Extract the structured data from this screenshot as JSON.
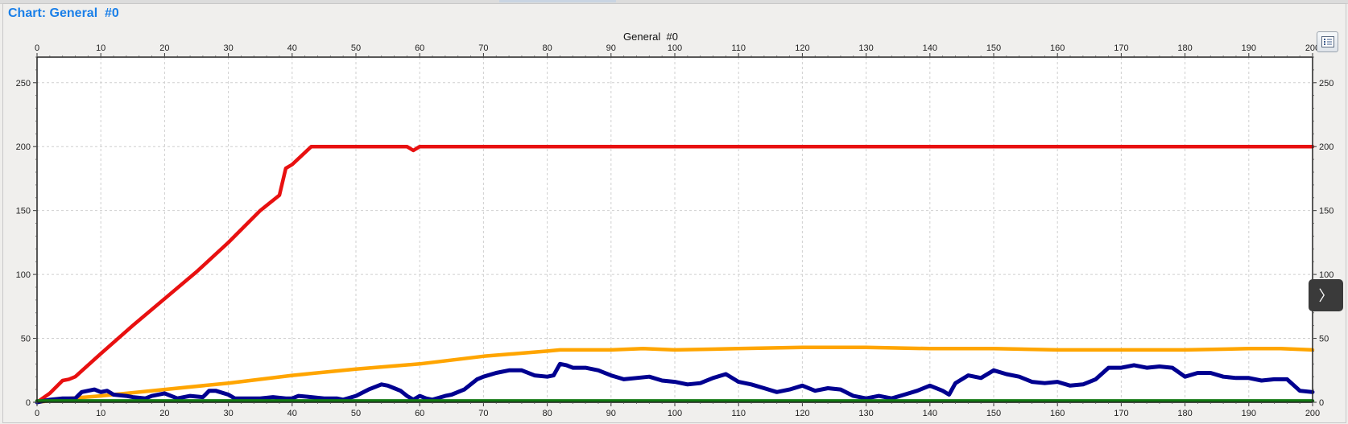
{
  "window": {
    "title": "Chart: General  #0"
  },
  "controls": {
    "legend_icon": "list-icon",
    "side_toggle_icon": "chevron-right-icon",
    "side_toggle_glyph": "〉"
  },
  "chart_data": {
    "type": "line",
    "title": "General  #0",
    "xlabel": "",
    "ylabel": "",
    "xlim": [
      0,
      200
    ],
    "ylim": [
      0,
      270
    ],
    "x_ticks": [
      0,
      10,
      20,
      30,
      40,
      50,
      60,
      70,
      80,
      90,
      100,
      110,
      120,
      130,
      140,
      150,
      160,
      170,
      180,
      190,
      200
    ],
    "y_ticks": [
      0,
      50,
      100,
      150,
      200,
      250
    ],
    "grid": true,
    "legend": "hidden",
    "series": [
      {
        "color": "#e81010",
        "points": [
          [
            0,
            0
          ],
          [
            2,
            7
          ],
          [
            4,
            17
          ],
          [
            5,
            18
          ],
          [
            6,
            20
          ],
          [
            10,
            38
          ],
          [
            15,
            60
          ],
          [
            20,
            81
          ],
          [
            25,
            102
          ],
          [
            30,
            125
          ],
          [
            35,
            150
          ],
          [
            38,
            162
          ],
          [
            39,
            183
          ],
          [
            40,
            186
          ],
          [
            43,
            200
          ],
          [
            58,
            200
          ],
          [
            59,
            197
          ],
          [
            60,
            200
          ],
          [
            200,
            200
          ]
        ]
      },
      {
        "color": "#ffa500",
        "points": [
          [
            0,
            0
          ],
          [
            5,
            3
          ],
          [
            10,
            5
          ],
          [
            20,
            10
          ],
          [
            30,
            15
          ],
          [
            40,
            21
          ],
          [
            50,
            26
          ],
          [
            60,
            30
          ],
          [
            70,
            36
          ],
          [
            80,
            40
          ],
          [
            82,
            41
          ],
          [
            90,
            41
          ],
          [
            95,
            42
          ],
          [
            100,
            41
          ],
          [
            110,
            42
          ],
          [
            120,
            43
          ],
          [
            130,
            43
          ],
          [
            140,
            42
          ],
          [
            150,
            42
          ],
          [
            160,
            41
          ],
          [
            170,
            41
          ],
          [
            180,
            41
          ],
          [
            190,
            42
          ],
          [
            195,
            42
          ],
          [
            200,
            41
          ]
        ]
      },
      {
        "color": "#000090",
        "points": [
          [
            0,
            0
          ],
          [
            2,
            2
          ],
          [
            4,
            3
          ],
          [
            6,
            3
          ],
          [
            7,
            8
          ],
          [
            9,
            10
          ],
          [
            10,
            8
          ],
          [
            11,
            9
          ],
          [
            12,
            6
          ],
          [
            14,
            5
          ],
          [
            15,
            4
          ],
          [
            17,
            3
          ],
          [
            18,
            5
          ],
          [
            20,
            7
          ],
          [
            22,
            3
          ],
          [
            24,
            5
          ],
          [
            26,
            4
          ],
          [
            27,
            9
          ],
          [
            28,
            9
          ],
          [
            30,
            6
          ],
          [
            31,
            3
          ],
          [
            33,
            3
          ],
          [
            35,
            3
          ],
          [
            37,
            4
          ],
          [
            39,
            3
          ],
          [
            40,
            3
          ],
          [
            41,
            5
          ],
          [
            43,
            4
          ],
          [
            45,
            3
          ],
          [
            47,
            3
          ],
          [
            48,
            2
          ],
          [
            50,
            5
          ],
          [
            52,
            10
          ],
          [
            53,
            12
          ],
          [
            54,
            14
          ],
          [
            55,
            13
          ],
          [
            56,
            11
          ],
          [
            57,
            9
          ],
          [
            58,
            5
          ],
          [
            59,
            2
          ],
          [
            60,
            5
          ],
          [
            61,
            3
          ],
          [
            62,
            2
          ],
          [
            64,
            5
          ],
          [
            65,
            6
          ],
          [
            67,
            10
          ],
          [
            69,
            18
          ],
          [
            70,
            20
          ],
          [
            72,
            23
          ],
          [
            74,
            25
          ],
          [
            76,
            25
          ],
          [
            78,
            21
          ],
          [
            80,
            20
          ],
          [
            81,
            21
          ],
          [
            82,
            30
          ],
          [
            83,
            29
          ],
          [
            84,
            27
          ],
          [
            86,
            27
          ],
          [
            88,
            25
          ],
          [
            90,
            21
          ],
          [
            92,
            18
          ],
          [
            94,
            19
          ],
          [
            96,
            20
          ],
          [
            98,
            17
          ],
          [
            100,
            16
          ],
          [
            102,
            14
          ],
          [
            104,
            15
          ],
          [
            106,
            19
          ],
          [
            108,
            22
          ],
          [
            110,
            16
          ],
          [
            112,
            14
          ],
          [
            114,
            11
          ],
          [
            116,
            8
          ],
          [
            118,
            10
          ],
          [
            120,
            13
          ],
          [
            122,
            9
          ],
          [
            124,
            11
          ],
          [
            126,
            10
          ],
          [
            128,
            5
          ],
          [
            130,
            3
          ],
          [
            132,
            5
          ],
          [
            134,
            3
          ],
          [
            136,
            6
          ],
          [
            138,
            9
          ],
          [
            140,
            13
          ],
          [
            142,
            9
          ],
          [
            143,
            6
          ],
          [
            144,
            15
          ],
          [
            146,
            21
          ],
          [
            148,
            19
          ],
          [
            150,
            25
          ],
          [
            152,
            22
          ],
          [
            154,
            20
          ],
          [
            156,
            16
          ],
          [
            158,
            15
          ],
          [
            160,
            16
          ],
          [
            162,
            13
          ],
          [
            164,
            14
          ],
          [
            166,
            18
          ],
          [
            168,
            27
          ],
          [
            170,
            27
          ],
          [
            172,
            29
          ],
          [
            174,
            27
          ],
          [
            176,
            28
          ],
          [
            178,
            27
          ],
          [
            180,
            20
          ],
          [
            182,
            23
          ],
          [
            184,
            23
          ],
          [
            186,
            20
          ],
          [
            188,
            19
          ],
          [
            190,
            19
          ],
          [
            192,
            17
          ],
          [
            194,
            18
          ],
          [
            196,
            18
          ],
          [
            198,
            9
          ],
          [
            200,
            8
          ]
        ]
      },
      {
        "color": "#127a12",
        "points": [
          [
            0,
            1
          ],
          [
            50,
            1
          ],
          [
            100,
            1
          ],
          [
            150,
            1
          ],
          [
            200,
            1
          ]
        ]
      }
    ]
  }
}
